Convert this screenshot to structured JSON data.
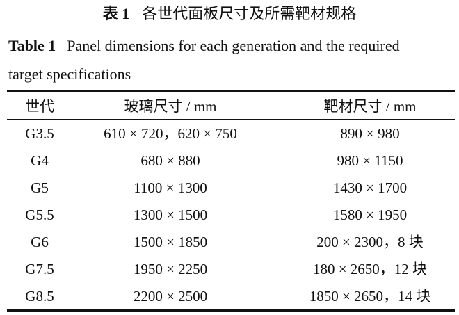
{
  "caption": {
    "cn_label": "表 1",
    "cn_title": "各世代面板尺寸及所需靶材规格",
    "en_label": "Table 1",
    "en_title_line1": "Panel dimensions for each generation and the required",
    "en_title_line2": "target specifications"
  },
  "table": {
    "headers": [
      "世代",
      "玻璃尺寸 / mm",
      "靶材尺寸 / mm"
    ],
    "rows": [
      [
        "G3.5",
        "610 × 720，620 × 750",
        "890 × 980"
      ],
      [
        "G4",
        "680 × 880",
        "980 × 1150"
      ],
      [
        "G5",
        "1100 × 1300",
        "1430 × 1700"
      ],
      [
        "G5.5",
        "1300 × 1500",
        "1580 × 1950"
      ],
      [
        "G6",
        "1500 × 1850",
        "200 × 2300，8 块"
      ],
      [
        "G7.5",
        "1950 × 2250",
        "180 × 2650，12 块"
      ],
      [
        "G8.5",
        "2200 × 2500",
        "1850 × 2650，14 块"
      ]
    ]
  }
}
